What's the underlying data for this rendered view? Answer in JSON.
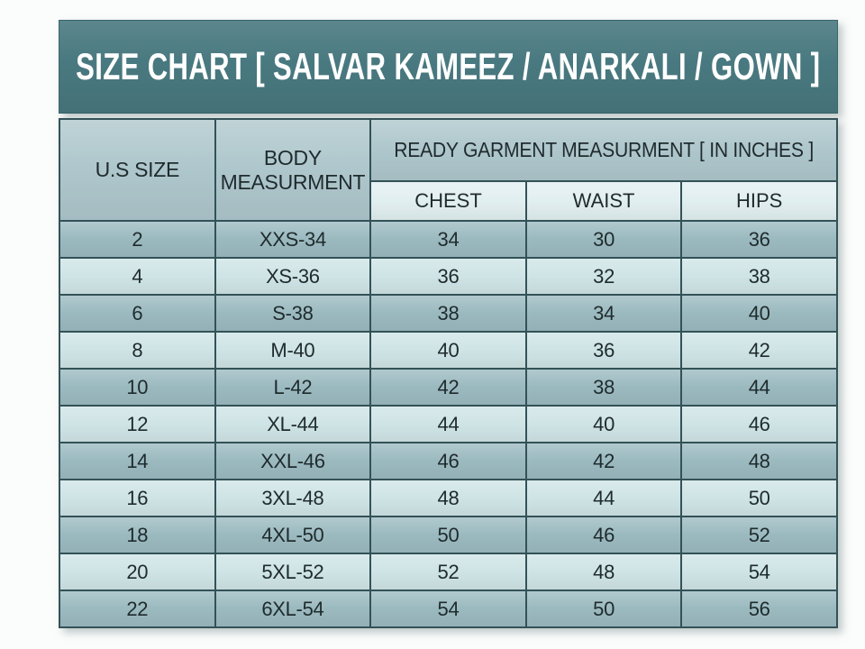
{
  "chart_data": {
    "type": "table",
    "title": "SIZE CHART [ SALVAR KAMEEZ / ANARKALI / GOWN ]",
    "header": {
      "col_us_size": "U.S SIZE",
      "col_body_measurement": "BODY MEASURMENT",
      "group_ready_garment": "READY GARMENT MEASURMENT [ IN INCHES ]",
      "sub_columns": [
        "CHEST",
        "WAIST",
        "HIPS"
      ]
    },
    "columns": [
      "U.S SIZE",
      "BODY MEASURMENT",
      "CHEST",
      "WAIST",
      "HIPS"
    ],
    "rows": [
      [
        "2",
        "XXS-34",
        "34",
        "30",
        "36"
      ],
      [
        "4",
        "XS-36",
        "36",
        "32",
        "38"
      ],
      [
        "6",
        "S-38",
        "38",
        "34",
        "40"
      ],
      [
        "8",
        "M-40",
        "40",
        "36",
        "42"
      ],
      [
        "10",
        "L-42",
        "42",
        "38",
        "44"
      ],
      [
        "12",
        "XL-44",
        "44",
        "40",
        "46"
      ],
      [
        "14",
        "XXL-46",
        "46",
        "42",
        "48"
      ],
      [
        "16",
        "3XL-48",
        "48",
        "44",
        "50"
      ],
      [
        "18",
        "4XL-50",
        "50",
        "46",
        "52"
      ],
      [
        "20",
        "5XL-52",
        "52",
        "48",
        "54"
      ],
      [
        "22",
        "6XL-54",
        "54",
        "50",
        "56"
      ]
    ]
  },
  "colors": {
    "page_bg": "#fbfcfc",
    "title_bg": "#497980",
    "title_edge": "#3a646b",
    "title_text": "#ffffff",
    "header_bg": "#aec7cc",
    "subheader_bg": "#e2eff1",
    "row_dark": "#9bbac0",
    "row_light": "#cfe4e6",
    "border": "#335257",
    "cell_text": "#1f2b2d"
  }
}
